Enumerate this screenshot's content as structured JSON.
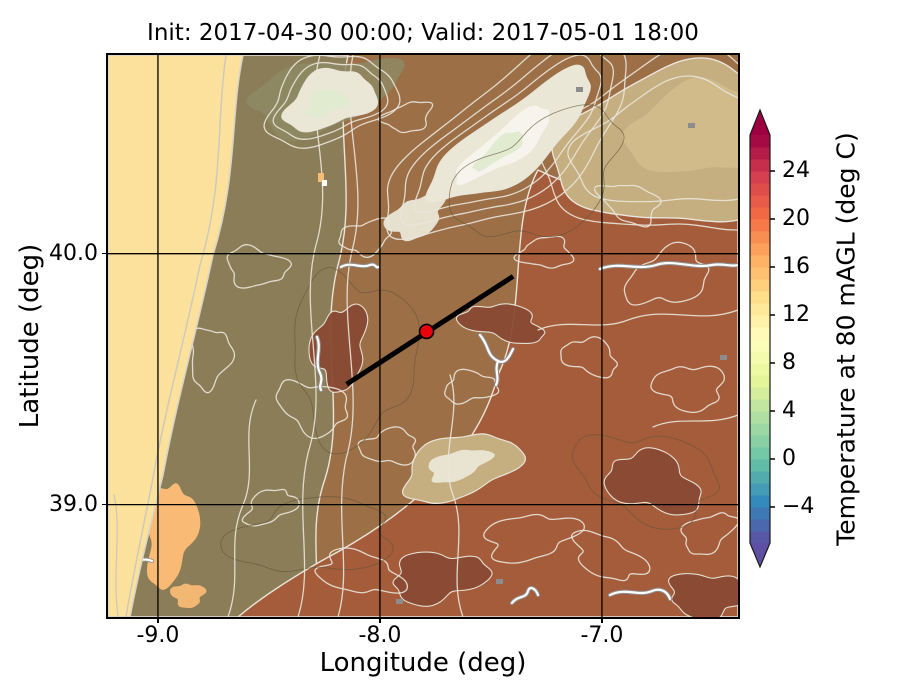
{
  "title": "Init: 2017-04-30 00:00; Valid: 2017-05-01 18:00",
  "init_time": "2017-04-30 00:00",
  "valid_time": "2017-05-01 18:00",
  "chart_data": {
    "type": "filled-contour-map",
    "title": "Init: 2017-04-30 00:00; Valid: 2017-05-01 18:00",
    "xlabel": "Longitude (deg)",
    "ylabel": "Latitude (deg)",
    "xlim": [
      -9.225,
      -6.387
    ],
    "ylim": [
      38.552,
      40.792
    ],
    "grid": true,
    "xticks": [
      {
        "v": -9.0,
        "label": "-9.0"
      },
      {
        "v": -8.0,
        "label": "-8.0"
      },
      {
        "v": -7.0,
        "label": "-7.0"
      }
    ],
    "yticks": [
      {
        "v": 40.0,
        "label": "40.0"
      },
      {
        "v": 39.0,
        "label": "39.0"
      }
    ],
    "colorbar": {
      "label": "Temperature at 80 mAGL (deg C)",
      "vmin": -7,
      "vmax": 27,
      "step": 1,
      "extend": "both",
      "ticks": [
        {
          "v": -4,
          "label": "−4"
        },
        {
          "v": 0,
          "label": "0"
        },
        {
          "v": 4,
          "label": "4"
        },
        {
          "v": 8,
          "label": "8"
        },
        {
          "v": 12,
          "label": "12"
        },
        {
          "v": 16,
          "label": "16"
        },
        {
          "v": 20,
          "label": "20"
        },
        {
          "v": 24,
          "label": "24"
        }
      ],
      "palette": [
        "#5e4fa2",
        "#3288bd",
        "#66c2a5",
        "#abdda4",
        "#e6f598",
        "#ffffbf",
        "#fee08b",
        "#fdae61",
        "#f46d43",
        "#d53e4f",
        "#9e0142"
      ]
    },
    "transect_line": {
      "from": [
        -8.15,
        39.48
      ],
      "to": [
        -7.4,
        39.91
      ],
      "color": "#000000",
      "width": 5
    },
    "marker": {
      "lon": -7.79,
      "lat": 39.69,
      "fill": "#e8000d",
      "edge": "#000000",
      "radius": 7
    },
    "map_colors": {
      "ocean": "#fbe19c",
      "ocean_contour": "#cfc9ba",
      "coast_line": "#d8d4c6",
      "olive": "#8b7d58",
      "green_olive": "#8e8a64",
      "brown": "#9c6f47",
      "red_brown": "#a45c3b",
      "dark_red": "#8a4a33",
      "tan": "#c5ae7f",
      "tan_light": "#d2bd8d",
      "cream": "#ebe7d6",
      "pale_green": "#e0ebcf",
      "contour_white": "#e9e5da",
      "contour_bright": "#f6f4ec",
      "contour_dark": "#64553a",
      "river_fill": "#ffffff",
      "river_edge": "#8f8f8f",
      "estuary": "#f8ba75",
      "town": "#8c8c8c",
      "gridline": "#000000"
    }
  }
}
